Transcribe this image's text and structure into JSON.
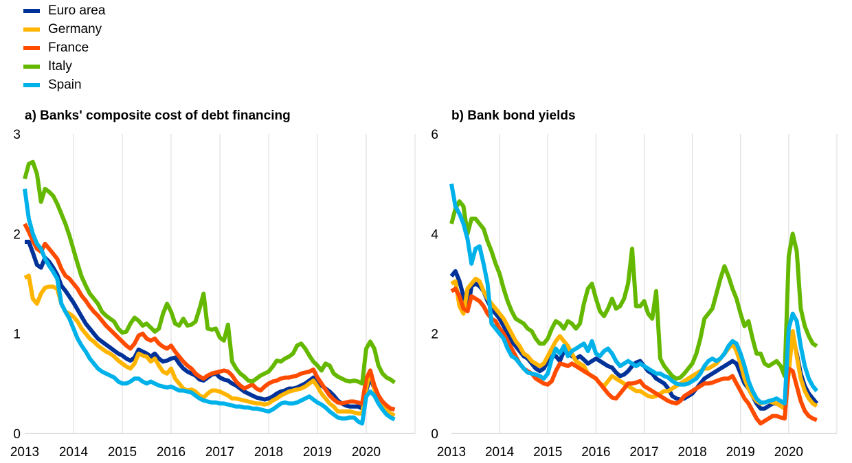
{
  "legend": [
    "Euro area",
    "Germany",
    "France",
    "Italy",
    "Spain"
  ],
  "colors": {
    "Euro area": "#003299",
    "Germany": "#FFB400",
    "France": "#FF4B00",
    "Italy": "#65B800",
    "Spain": "#00B1EA",
    "grid": "#d9d9d9"
  },
  "chart_data": [
    {
      "type": "line",
      "title": "a) Banks' composite cost of debt financing",
      "x_start": "2013-01",
      "x_step": "1 month",
      "x_ticks": [
        "2013",
        "2014",
        "2015",
        "2016",
        "2017",
        "2018",
        "2019",
        "2020"
      ],
      "y_ticks": [
        "0",
        "1",
        "2",
        "3"
      ],
      "ylim": [
        0,
        3
      ],
      "grid": "vertical at year ticks",
      "series": [
        {
          "name": "Euro area",
          "values": [
            1.92,
            1.92,
            1.81,
            1.69,
            1.66,
            1.76,
            1.72,
            1.66,
            1.59,
            1.48,
            1.43,
            1.37,
            1.31,
            1.24,
            1.17,
            1.1,
            1.05,
            1.0,
            0.95,
            0.92,
            0.89,
            0.86,
            0.83,
            0.8,
            0.78,
            0.75,
            0.73,
            0.76,
            0.84,
            0.82,
            0.8,
            0.77,
            0.8,
            0.75,
            0.72,
            0.73,
            0.75,
            0.76,
            0.7,
            0.65,
            0.62,
            0.6,
            0.58,
            0.54,
            0.53,
            0.56,
            0.59,
            0.6,
            0.56,
            0.54,
            0.53,
            0.5,
            0.48,
            0.45,
            0.42,
            0.4,
            0.38,
            0.36,
            0.35,
            0.34,
            0.35,
            0.37,
            0.4,
            0.42,
            0.43,
            0.45,
            0.45,
            0.46,
            0.48,
            0.5,
            0.53,
            0.56,
            0.52,
            0.48,
            0.45,
            0.42,
            0.38,
            0.33,
            0.3,
            0.28,
            0.27,
            0.27,
            0.27,
            0.25,
            0.43,
            0.56,
            0.45,
            0.37,
            0.31,
            0.27,
            0.25,
            0.24
          ]
        },
        {
          "name": "Germany",
          "values": [
            1.56,
            1.58,
            1.35,
            1.3,
            1.4,
            1.46,
            1.47,
            1.47,
            1.45,
            1.3,
            1.22,
            1.2,
            1.17,
            1.12,
            1.05,
            1.0,
            0.95,
            0.92,
            0.88,
            0.85,
            0.82,
            0.8,
            0.77,
            0.73,
            0.7,
            0.67,
            0.65,
            0.7,
            0.8,
            0.78,
            0.77,
            0.72,
            0.75,
            0.68,
            0.62,
            0.6,
            0.65,
            0.55,
            0.5,
            0.45,
            0.43,
            0.44,
            0.42,
            0.38,
            0.36,
            0.4,
            0.43,
            0.43,
            0.42,
            0.4,
            0.38,
            0.35,
            0.35,
            0.34,
            0.33,
            0.32,
            0.31,
            0.3,
            0.3,
            0.29,
            0.3,
            0.33,
            0.35,
            0.38,
            0.4,
            0.42,
            0.43,
            0.44,
            0.45,
            0.47,
            0.5,
            0.53,
            0.47,
            0.4,
            0.35,
            0.3,
            0.27,
            0.22,
            0.22,
            0.22,
            0.22,
            0.21,
            0.2,
            0.2,
            0.45,
            0.63,
            0.45,
            0.33,
            0.27,
            0.23,
            0.2,
            0.18
          ]
        },
        {
          "name": "France",
          "values": [
            2.1,
            2.02,
            1.93,
            1.85,
            1.82,
            1.9,
            1.85,
            1.8,
            1.75,
            1.65,
            1.58,
            1.55,
            1.5,
            1.45,
            1.38,
            1.33,
            1.27,
            1.22,
            1.18,
            1.13,
            1.08,
            1.04,
            1.0,
            0.96,
            0.92,
            0.88,
            0.85,
            0.9,
            0.98,
            1.0,
            0.95,
            0.93,
            0.95,
            0.9,
            0.87,
            0.85,
            0.88,
            0.82,
            0.77,
            0.72,
            0.68,
            0.65,
            0.6,
            0.57,
            0.55,
            0.58,
            0.6,
            0.61,
            0.62,
            0.63,
            0.62,
            0.58,
            0.52,
            0.48,
            0.45,
            0.47,
            0.49,
            0.45,
            0.43,
            0.47,
            0.5,
            0.52,
            0.53,
            0.55,
            0.56,
            0.56,
            0.57,
            0.58,
            0.6,
            0.61,
            0.62,
            0.64,
            0.56,
            0.5,
            0.44,
            0.38,
            0.34,
            0.31,
            0.3,
            0.31,
            0.32,
            0.32,
            0.31,
            0.3,
            0.55,
            0.63,
            0.48,
            0.38,
            0.32,
            0.28,
            0.25,
            0.24
          ]
        },
        {
          "name": "Italy",
          "values": [
            2.55,
            2.7,
            2.72,
            2.6,
            2.32,
            2.45,
            2.42,
            2.38,
            2.3,
            2.2,
            2.1,
            1.98,
            1.84,
            1.7,
            1.57,
            1.48,
            1.4,
            1.35,
            1.3,
            1.22,
            1.18,
            1.15,
            1.12,
            1.05,
            1.01,
            1.02,
            1.1,
            1.16,
            1.13,
            1.08,
            1.1,
            1.06,
            1.02,
            1.05,
            1.2,
            1.3,
            1.22,
            1.1,
            1.08,
            1.15,
            1.08,
            1.09,
            1.12,
            1.25,
            1.4,
            1.05,
            1.04,
            1.05,
            0.96,
            0.93,
            1.09,
            0.72,
            0.65,
            0.6,
            0.57,
            0.53,
            0.52,
            0.55,
            0.58,
            0.6,
            0.62,
            0.67,
            0.73,
            0.72,
            0.75,
            0.77,
            0.8,
            0.88,
            0.9,
            0.85,
            0.78,
            0.72,
            0.68,
            0.63,
            0.7,
            0.68,
            0.6,
            0.57,
            0.55,
            0.53,
            0.52,
            0.53,
            0.52,
            0.5,
            0.85,
            0.92,
            0.85,
            0.68,
            0.6,
            0.56,
            0.54,
            0.51
          ]
        },
        {
          "name": "Spain",
          "values": [
            2.45,
            2.15,
            2.0,
            1.9,
            1.85,
            1.75,
            1.68,
            1.62,
            1.55,
            1.3,
            1.22,
            1.15,
            1.05,
            0.95,
            0.88,
            0.82,
            0.75,
            0.7,
            0.65,
            0.62,
            0.6,
            0.58,
            0.56,
            0.52,
            0.5,
            0.5,
            0.52,
            0.55,
            0.55,
            0.52,
            0.5,
            0.52,
            0.5,
            0.48,
            0.47,
            0.46,
            0.47,
            0.45,
            0.43,
            0.43,
            0.42,
            0.41,
            0.38,
            0.35,
            0.33,
            0.32,
            0.31,
            0.31,
            0.3,
            0.3,
            0.29,
            0.28,
            0.27,
            0.27,
            0.26,
            0.26,
            0.25,
            0.25,
            0.24,
            0.23,
            0.22,
            0.24,
            0.27,
            0.3,
            0.31,
            0.3,
            0.3,
            0.31,
            0.33,
            0.35,
            0.37,
            0.34,
            0.31,
            0.29,
            0.26,
            0.22,
            0.19,
            0.16,
            0.15,
            0.15,
            0.16,
            0.16,
            0.12,
            0.1,
            0.37,
            0.42,
            0.38,
            0.3,
            0.24,
            0.19,
            0.16,
            0.14
          ]
        }
      ]
    },
    {
      "type": "line",
      "title": "b) Bank bond yields",
      "x_start": "2013-01",
      "x_step": "1 month",
      "x_ticks": [
        "2013",
        "2014",
        "2015",
        "2016",
        "2017",
        "2018",
        "2019",
        "2020"
      ],
      "y_ticks": [
        "0",
        "2",
        "4",
        "6"
      ],
      "ylim": [
        0,
        6
      ],
      "grid": "vertical at year ticks",
      "series": [
        {
          "name": "Euro area",
          "values": [
            3.15,
            3.25,
            3.05,
            2.75,
            2.45,
            2.95,
            3.0,
            2.95,
            2.85,
            2.65,
            2.5,
            2.4,
            2.3,
            2.15,
            2.0,
            1.85,
            1.75,
            1.65,
            1.55,
            1.5,
            1.4,
            1.3,
            1.25,
            1.3,
            1.45,
            1.55,
            1.55,
            1.45,
            1.65,
            1.7,
            1.55,
            1.5,
            1.55,
            1.48,
            1.4,
            1.45,
            1.5,
            1.45,
            1.4,
            1.35,
            1.32,
            1.22,
            1.15,
            1.18,
            1.25,
            1.35,
            1.42,
            1.45,
            1.35,
            1.25,
            1.2,
            1.1,
            1.05,
            1.0,
            0.9,
            0.75,
            0.7,
            0.68,
            0.7,
            0.75,
            0.8,
            0.9,
            1.0,
            1.1,
            1.15,
            1.2,
            1.25,
            1.3,
            1.35,
            1.4,
            1.45,
            1.4,
            1.2,
            1.0,
            0.9,
            0.75,
            0.6,
            0.5,
            0.5,
            0.55,
            0.6,
            0.6,
            0.55,
            0.5,
            1.5,
            1.95,
            1.6,
            1.2,
            0.95,
            0.8,
            0.7,
            0.6
          ]
        },
        {
          "name": "Germany",
          "values": [
            3.0,
            3.05,
            2.55,
            2.4,
            2.9,
            3.0,
            3.1,
            3.05,
            2.85,
            2.7,
            2.6,
            2.5,
            2.4,
            2.3,
            2.15,
            2.0,
            1.85,
            1.75,
            1.6,
            1.55,
            1.45,
            1.4,
            1.35,
            1.4,
            1.55,
            1.7,
            1.85,
            1.95,
            1.85,
            1.75,
            1.6,
            1.45,
            1.4,
            1.35,
            1.2,
            1.15,
            1.1,
            1.0,
            0.95,
            1.05,
            1.15,
            1.1,
            1.05,
            1.0,
            0.95,
            0.9,
            0.85,
            0.85,
            0.8,
            0.75,
            0.73,
            0.75,
            0.8,
            0.85,
            0.85,
            0.9,
            0.95,
            1.0,
            1.05,
            1.1,
            1.15,
            1.2,
            1.25,
            1.3,
            1.3,
            1.35,
            1.4,
            1.5,
            1.6,
            1.7,
            1.8,
            1.65,
            1.4,
            1.1,
            0.9,
            0.75,
            0.65,
            0.6,
            0.62,
            0.65,
            0.62,
            0.6,
            0.55,
            0.5,
            1.2,
            2.05,
            1.55,
            1.1,
            0.85,
            0.7,
            0.6,
            0.55
          ]
        },
        {
          "name": "France",
          "values": [
            2.85,
            2.9,
            2.75,
            2.5,
            2.45,
            2.75,
            2.7,
            2.65,
            2.55,
            2.4,
            2.3,
            2.25,
            2.1,
            2.0,
            1.85,
            1.7,
            1.55,
            1.4,
            1.3,
            1.25,
            1.2,
            1.1,
            1.05,
            1.0,
            0.98,
            1.05,
            1.25,
            1.4,
            1.38,
            1.35,
            1.4,
            1.35,
            1.3,
            1.25,
            1.2,
            1.15,
            1.1,
            1.0,
            0.9,
            0.8,
            0.72,
            0.7,
            0.8,
            0.9,
            1.0,
            1.0,
            1.02,
            1.05,
            0.95,
            0.9,
            0.85,
            0.8,
            0.75,
            0.7,
            0.65,
            0.62,
            0.6,
            0.65,
            0.75,
            0.8,
            0.85,
            0.9,
            0.95,
            1.0,
            1.0,
            1.02,
            1.05,
            1.08,
            1.1,
            1.1,
            1.15,
            1.0,
            0.85,
            0.7,
            0.6,
            0.45,
            0.3,
            0.2,
            0.25,
            0.3,
            0.35,
            0.35,
            0.32,
            0.3,
            1.3,
            1.25,
            0.95,
            0.65,
            0.45,
            0.35,
            0.3,
            0.27
          ]
        },
        {
          "name": "Italy",
          "values": [
            4.2,
            4.5,
            4.65,
            4.55,
            4.0,
            4.3,
            4.3,
            4.2,
            4.1,
            3.85,
            3.65,
            3.4,
            3.2,
            2.9,
            2.65,
            2.45,
            2.3,
            2.25,
            2.2,
            2.1,
            2.05,
            1.9,
            1.8,
            1.8,
            1.9,
            2.1,
            2.25,
            2.2,
            2.1,
            2.25,
            2.2,
            2.1,
            2.2,
            2.6,
            2.9,
            3.0,
            2.7,
            2.45,
            2.35,
            2.5,
            2.7,
            2.5,
            2.55,
            2.7,
            3.0,
            3.7,
            2.55,
            2.55,
            2.65,
            2.4,
            2.3,
            2.85,
            1.5,
            1.35,
            1.25,
            1.15,
            1.1,
            1.12,
            1.2,
            1.3,
            1.4,
            1.6,
            1.9,
            2.3,
            2.4,
            2.5,
            2.8,
            3.1,
            3.35,
            3.15,
            2.9,
            2.7,
            2.4,
            2.15,
            2.25,
            1.9,
            1.6,
            1.6,
            1.4,
            1.35,
            1.4,
            1.45,
            1.35,
            1.15,
            3.55,
            4.0,
            3.65,
            2.5,
            2.15,
            1.95,
            1.8,
            1.75
          ]
        },
        {
          "name": "Spain",
          "values": [
            5.0,
            4.55,
            4.4,
            4.2,
            3.9,
            3.4,
            3.7,
            3.75,
            3.4,
            3.0,
            2.2,
            2.1,
            2.0,
            1.9,
            1.7,
            1.55,
            1.5,
            1.4,
            1.3,
            1.22,
            1.2,
            1.18,
            1.15,
            1.1,
            1.2,
            1.5,
            1.7,
            1.6,
            1.75,
            1.55,
            1.65,
            1.7,
            1.75,
            1.8,
            1.65,
            1.85,
            1.6,
            1.55,
            1.65,
            1.7,
            1.6,
            1.45,
            1.35,
            1.4,
            1.45,
            1.4,
            1.35,
            1.4,
            1.35,
            1.3,
            1.25,
            1.2,
            1.2,
            1.15,
            1.12,
            1.05,
            1.0,
            0.98,
            0.98,
            1.0,
            1.05,
            1.1,
            1.2,
            1.35,
            1.45,
            1.5,
            1.45,
            1.5,
            1.6,
            1.75,
            1.85,
            1.8,
            1.6,
            1.35,
            1.05,
            0.85,
            0.7,
            0.62,
            0.62,
            0.65,
            0.67,
            0.7,
            0.65,
            0.6,
            2.1,
            2.4,
            2.25,
            1.75,
            1.35,
            1.1,
            0.95,
            0.85
          ]
        }
      ]
    }
  ]
}
